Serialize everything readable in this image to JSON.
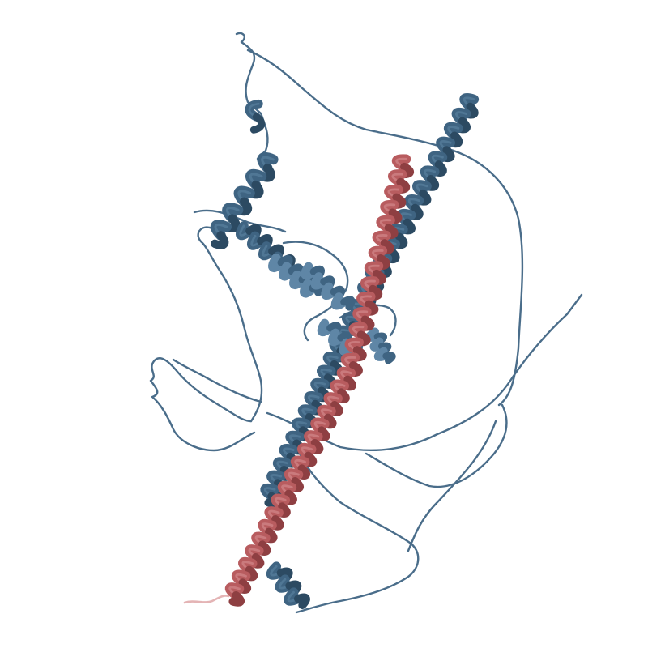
{
  "image": {
    "subject": "protein-ribbon-structure",
    "background_color": "#ffffff"
  },
  "colors": {
    "chain_blue": "#3f6482",
    "chain_blue_dark": "#2c4a62",
    "chain_blue_light": "#5f86a6",
    "chain_red": "#b85c5f",
    "chain_red_dark": "#8e3f42",
    "chain_red_light": "#d89495",
    "loop_blue": "#4a6d8a"
  }
}
